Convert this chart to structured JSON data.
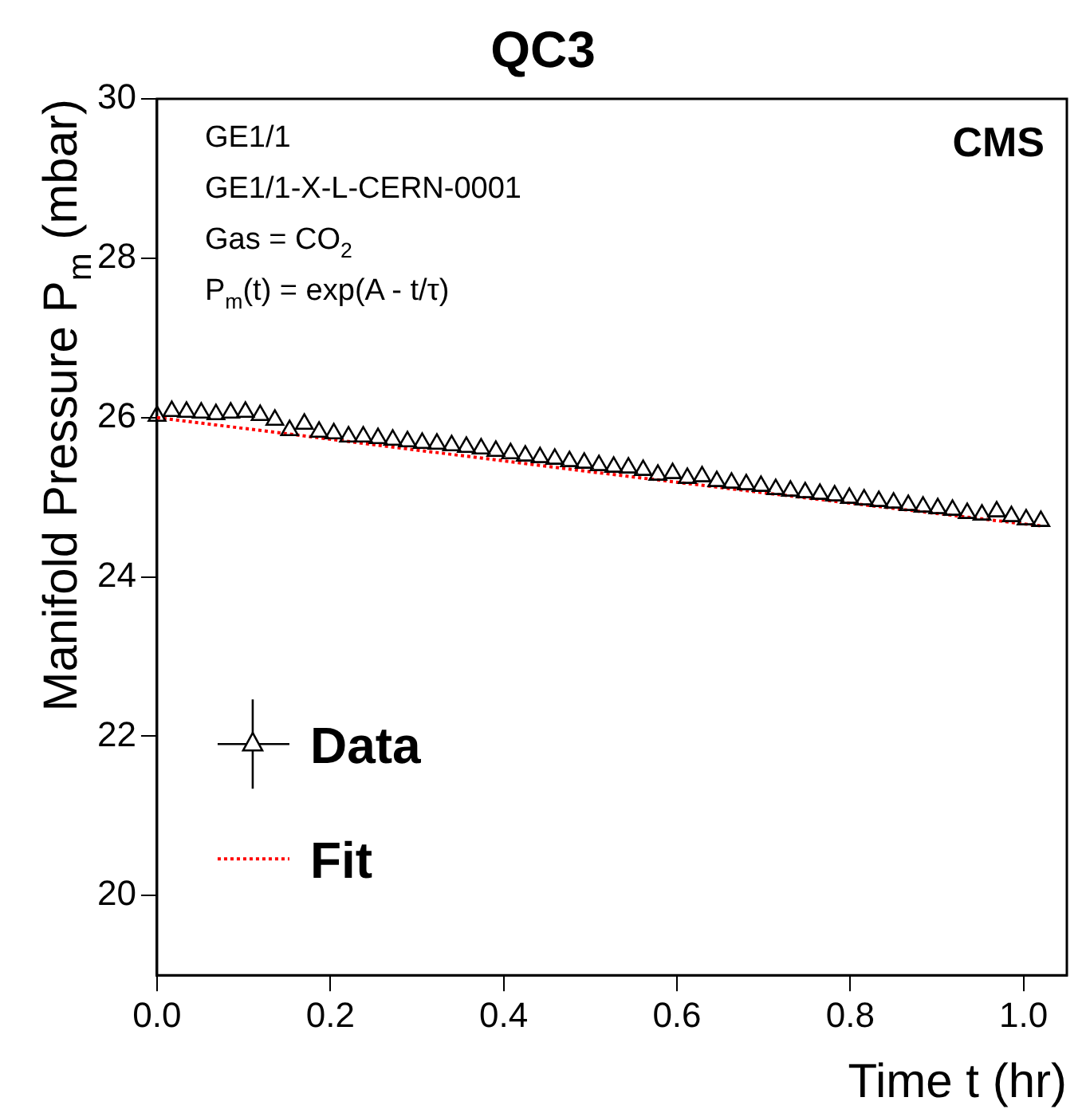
{
  "chart_data": {
    "type": "scatter",
    "title": "QC3",
    "xlabel": "Time t (hr)",
    "ylabel": "Manifold Pressure P$_{m}$ (mbar)",
    "annotations": [
      "GE1/1",
      "GE1/1-X-L-CERN-0001",
      "Gas = CO$_{2}$",
      "P$_{m}$(t) = exp(A - t/τ)",
      "CMS"
    ],
    "xlim": [
      0,
      1.05
    ],
    "ylim": [
      19,
      30
    ],
    "xticks": [
      {
        "value": 0,
        "label": "0.0"
      },
      {
        "value": 0.2,
        "label": "0.2"
      },
      {
        "value": 0.4,
        "label": "0.4"
      },
      {
        "value": 0.6,
        "label": "0.6"
      },
      {
        "value": 0.8,
        "label": "0.8"
      },
      {
        "value": 1,
        "label": "1.0"
      }
    ],
    "yticks": [
      20,
      22,
      24,
      26,
      28,
      30
    ],
    "legend": "bottom left",
    "series": [
      {
        "name": "Data",
        "type": "scatter",
        "color": "#000000",
        "marker": "triangle",
        "x": [
          0,
          0.017,
          0.034,
          0.051,
          0.068,
          0.085,
          0.102,
          0.119,
          0.136,
          0.153,
          0.17,
          0.187,
          0.204,
          0.221,
          0.238,
          0.255,
          0.272,
          0.289,
          0.306,
          0.323,
          0.34,
          0.357,
          0.374,
          0.391,
          0.408,
          0.425,
          0.442,
          0.459,
          0.476,
          0.493,
          0.51,
          0.527,
          0.544,
          0.561,
          0.578,
          0.595,
          0.612,
          0.629,
          0.646,
          0.663,
          0.68,
          0.697,
          0.714,
          0.731,
          0.748,
          0.765,
          0.782,
          0.799,
          0.816,
          0.833,
          0.85,
          0.867,
          0.884,
          0.901,
          0.918,
          0.935,
          0.952,
          0.969,
          0.986,
          1.003,
          1.02
        ],
        "values": [
          26.02,
          26.08,
          26.07,
          26.06,
          26.04,
          26.06,
          26.07,
          26.03,
          25.97,
          25.84,
          25.92,
          25.82,
          25.8,
          25.76,
          25.76,
          25.74,
          25.72,
          25.7,
          25.68,
          25.67,
          25.65,
          25.63,
          25.61,
          25.58,
          25.55,
          25.52,
          25.5,
          25.48,
          25.45,
          25.43,
          25.4,
          25.38,
          25.37,
          25.34,
          25.28,
          25.3,
          25.24,
          25.26,
          25.2,
          25.18,
          25.16,
          25.14,
          25.1,
          25.08,
          25.06,
          25.04,
          25.02,
          24.99,
          24.97,
          24.95,
          24.93,
          24.9,
          24.88,
          24.86,
          24.84,
          24.8,
          24.78,
          24.82,
          24.76,
          24.72,
          24.7
        ]
      },
      {
        "name": "Fit",
        "type": "line",
        "color": "#ff0000",
        "marker": "none",
        "line_style": "dotted",
        "x": [
          0,
          0.25,
          0.5,
          0.75,
          1.02
        ],
        "values": [
          26.0,
          25.66,
          25.32,
          24.99,
          24.64
        ]
      }
    ]
  }
}
